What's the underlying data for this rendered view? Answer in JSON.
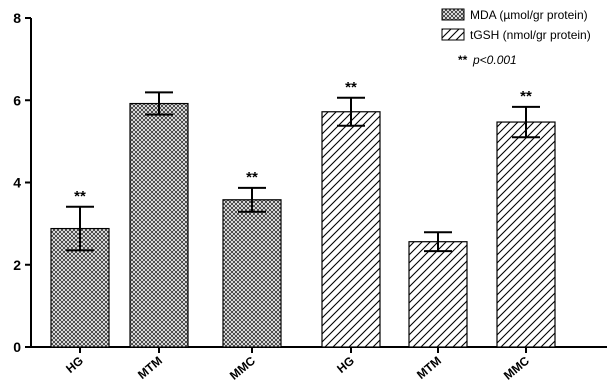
{
  "chart_data": {
    "type": "bar",
    "categories": [
      "HG",
      "MTM",
      "MMC",
      "HG",
      "MTM",
      "MMC"
    ],
    "series": [
      {
        "name": "MDA (µmol/gr protein)",
        "pattern": "crosshatch",
        "points": [
          {
            "category": "HG",
            "value": 2.88,
            "error": 0.53,
            "significance": "**"
          },
          {
            "category": "MTM",
            "value": 5.92,
            "error": 0.27,
            "significance": ""
          },
          {
            "category": "MMC",
            "value": 3.58,
            "error": 0.29,
            "significance": "**"
          }
        ]
      },
      {
        "name": "tGSH (nmol/gr protein)",
        "pattern": "diagonal-hatch",
        "points": [
          {
            "category": "HG",
            "value": 5.72,
            "error": 0.34,
            "significance": "**"
          },
          {
            "category": "MTM",
            "value": 2.56,
            "error": 0.23,
            "significance": ""
          },
          {
            "category": "MMC",
            "value": 5.47,
            "error": 0.37,
            "significance": "**"
          }
        ]
      }
    ],
    "ylim": [
      0,
      8
    ],
    "yticks": [
      0,
      2,
      4,
      6,
      8
    ],
    "xlabel": "",
    "ylabel": "",
    "legend": {
      "placement": "top-right",
      "significance_marker": "**",
      "significance_note": "p<0.001"
    },
    "colors": {
      "bar_fill": "#ffffff",
      "stroke": "#000000",
      "hatch": "#333333"
    }
  }
}
